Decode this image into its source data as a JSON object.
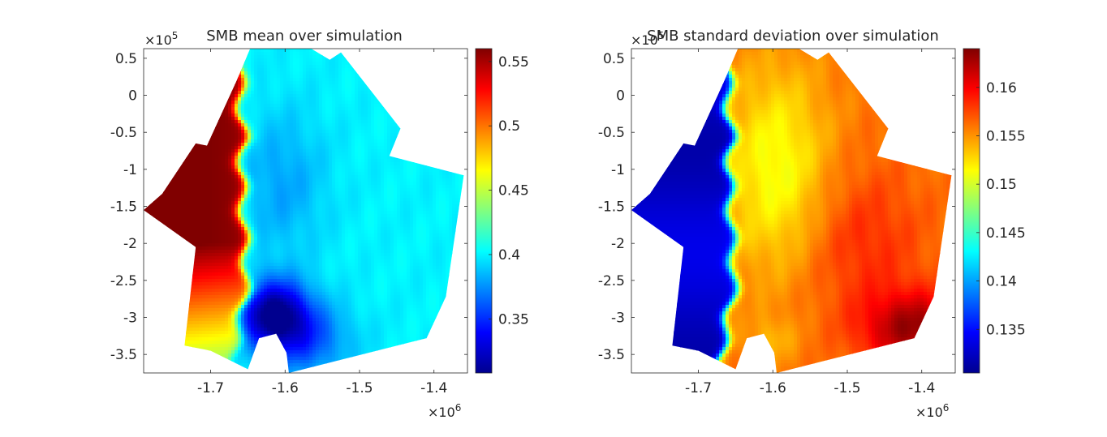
{
  "figure": {
    "colormap": "jet",
    "background": "#ffffff",
    "colormap_stops": [
      "#00008f",
      "#0000ff",
      "#0080ff",
      "#00ffff",
      "#80ff80",
      "#ffff00",
      "#ff8000",
      "#ff0000",
      "#800000"
    ]
  },
  "chart_data": [
    {
      "type": "heatmap",
      "title": "SMB mean over simulation",
      "xlabel": "",
      "ylabel": "",
      "x_multiplier": {
        "base": "×10",
        "exp": "6"
      },
      "y_multiplier": {
        "base": "×10",
        "exp": "5"
      },
      "xlim": [
        -1.79,
        -1.355
      ],
      "ylim": [
        -3.75,
        0.63
      ],
      "x_ticks": [
        -1.7,
        -1.6,
        -1.5,
        -1.4
      ],
      "x_tick_labels": [
        "-1.7",
        "-1.6",
        "-1.5",
        "-1.4"
      ],
      "y_ticks": [
        0.5,
        0,
        -0.5,
        -1,
        -1.5,
        -2,
        -2.5,
        -3,
        -3.5
      ],
      "y_tick_labels": [
        "0.5",
        "0",
        "-0.5",
        "-1",
        "-1.5",
        "-2",
        "-2.5",
        "-3",
        "-3.5"
      ],
      "colorbar": {
        "range": [
          0.308,
          0.56
        ],
        "ticks": [
          0.55,
          0.5,
          0.45,
          0.4,
          0.35
        ],
        "tick_labels": [
          "0.55",
          "0.5",
          "0.45",
          "0.4",
          "0.35"
        ]
      },
      "domain_outline": [
        [
          -1.665,
          0.2
        ],
        [
          -1.647,
          0.63
        ],
        [
          -1.565,
          0.63
        ],
        [
          -1.54,
          0.48
        ],
        [
          -1.525,
          0.58
        ],
        [
          -1.445,
          -0.45
        ],
        [
          -1.46,
          -0.82
        ],
        [
          -1.36,
          -1.08
        ],
        [
          -1.384,
          -2.72
        ],
        [
          -1.41,
          -3.28
        ],
        [
          -1.595,
          -3.75
        ],
        [
          -1.598,
          -3.48
        ],
        [
          -1.612,
          -3.22
        ],
        [
          -1.635,
          -3.28
        ],
        [
          -1.65,
          -3.7
        ],
        [
          -1.7,
          -3.45
        ],
        [
          -1.735,
          -3.38
        ],
        [
          -1.72,
          -2.05
        ],
        [
          -1.79,
          -1.55
        ],
        [
          -1.765,
          -1.33
        ],
        [
          -1.72,
          -0.65
        ],
        [
          -1.705,
          -0.68
        ]
      ],
      "summary": {
        "west_strip_max": 0.56,
        "south_strip_min": 0.45,
        "interior_east": 0.4,
        "interior_north_west": 0.38,
        "south_basin_min": 0.31,
        "transition_boundary": [
          [
            0.63,
            -1.662
          ],
          [
            0.0,
            -1.66
          ],
          [
            -0.3,
            -1.66
          ],
          [
            -0.6,
            -1.655
          ],
          [
            -1.0,
            -1.66
          ],
          [
            -1.5,
            -1.657
          ],
          [
            -2.0,
            -1.655
          ],
          [
            -2.4,
            -1.652
          ],
          [
            -2.8,
            -1.655
          ],
          [
            -3.2,
            -1.665
          ],
          [
            -3.75,
            -1.672
          ]
        ]
      }
    },
    {
      "type": "heatmap",
      "title": "SMB standard deviation over simulation",
      "xlabel": "",
      "ylabel": "",
      "x_multiplier": {
        "base": "×10",
        "exp": "6"
      },
      "y_multiplier": {
        "base": "×10",
        "exp": "5"
      },
      "xlim": [
        -1.79,
        -1.355
      ],
      "ylim": [
        -3.75,
        0.63
      ],
      "x_ticks": [
        -1.7,
        -1.6,
        -1.5,
        -1.4
      ],
      "x_tick_labels": [
        "-1.7",
        "-1.6",
        "-1.5",
        "-1.4"
      ],
      "y_ticks": [
        0.5,
        0,
        -0.5,
        -1,
        -1.5,
        -2,
        -2.5,
        -3,
        -3.5
      ],
      "y_tick_labels": [
        "0.5",
        "0",
        "-0.5",
        "-1",
        "-1.5",
        "-2",
        "-2.5",
        "-3",
        "-3.5"
      ],
      "colorbar": {
        "range": [
          0.1305,
          0.164
        ],
        "ticks": [
          0.16,
          0.155,
          0.15,
          0.145,
          0.14,
          0.135
        ],
        "tick_labels": [
          "0.16",
          "0.155",
          "0.15",
          "0.145",
          "0.14",
          "0.135"
        ]
      },
      "domain_outline": [
        [
          -1.665,
          0.2
        ],
        [
          -1.647,
          0.63
        ],
        [
          -1.565,
          0.63
        ],
        [
          -1.54,
          0.48
        ],
        [
          -1.525,
          0.58
        ],
        [
          -1.445,
          -0.45
        ],
        [
          -1.46,
          -0.82
        ],
        [
          -1.36,
          -1.08
        ],
        [
          -1.384,
          -2.72
        ],
        [
          -1.41,
          -3.28
        ],
        [
          -1.595,
          -3.75
        ],
        [
          -1.598,
          -3.48
        ],
        [
          -1.612,
          -3.22
        ],
        [
          -1.635,
          -3.28
        ],
        [
          -1.65,
          -3.7
        ],
        [
          -1.7,
          -3.45
        ],
        [
          -1.735,
          -3.38
        ],
        [
          -1.72,
          -2.05
        ],
        [
          -1.79,
          -1.55
        ],
        [
          -1.765,
          -1.33
        ],
        [
          -1.72,
          -0.65
        ],
        [
          -1.705,
          -0.68
        ]
      ],
      "summary": {
        "west_strip_min": 0.1315,
        "interior_center_max": 0.151,
        "interior_east": 0.156,
        "south_east_corner_max": 0.163,
        "transition_boundary": [
          [
            0.63,
            -1.662
          ],
          [
            0.0,
            -1.66
          ],
          [
            -0.3,
            -1.66
          ],
          [
            -0.6,
            -1.655
          ],
          [
            -1.0,
            -1.66
          ],
          [
            -1.5,
            -1.657
          ],
          [
            -2.0,
            -1.655
          ],
          [
            -2.4,
            -1.652
          ],
          [
            -2.8,
            -1.655
          ],
          [
            -3.2,
            -1.665
          ],
          [
            -3.75,
            -1.672
          ]
        ]
      }
    }
  ]
}
